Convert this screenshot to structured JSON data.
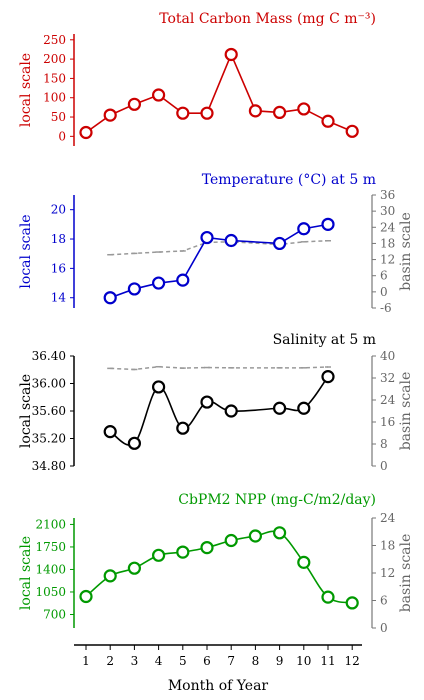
{
  "x_axis": {
    "label": "Month of Year",
    "ticks": [
      "1",
      "2",
      "3",
      "4",
      "5",
      "6",
      "7",
      "8",
      "9",
      "10",
      "11",
      "12"
    ]
  },
  "chart_data": [
    {
      "type": "line",
      "title": "Total Carbon Mass (mg C m⁻³)",
      "color": "#cc0000",
      "ylabel": "local scale",
      "ylim": [
        -25,
        265
      ],
      "yticks": [
        0,
        50,
        100,
        150,
        200,
        250
      ],
      "ytick_labels": [
        "0",
        "50",
        "100",
        "150",
        "200",
        "250"
      ],
      "series": [
        {
          "x": [
            1,
            2,
            3,
            4,
            5,
            6,
            7,
            8,
            9,
            10,
            11,
            12
          ],
          "values": [
            10,
            55,
            83,
            107,
            60,
            60,
            212,
            66,
            62,
            71,
            39,
            13
          ]
        }
      ]
    },
    {
      "type": "line",
      "title": "Temperature (°C) at 5 m",
      "color": "#0000cc",
      "ylabel": "local scale",
      "ylabel_right": "basin scale",
      "ylim": [
        13.3,
        21.0
      ],
      "yticks": [
        14,
        16,
        18,
        20
      ],
      "ytick_labels": [
        "14",
        "16",
        "18",
        "20"
      ],
      "ylim_right": [
        -6,
        36
      ],
      "yticks_right": [
        -6,
        0,
        6,
        12,
        18,
        24,
        30,
        36
      ],
      "ytick_labels_right": [
        "-6",
        "0",
        "6",
        "12",
        "18",
        "24",
        "30",
        "36"
      ],
      "series": [
        {
          "x": [
            2,
            3,
            4,
            5,
            6,
            7,
            9,
            10,
            11
          ],
          "values": [
            14.0,
            14.6,
            15.0,
            15.2,
            18.1,
            17.9,
            17.7,
            18.7,
            19.0
          ]
        },
        {
          "style": "dashed",
          "axis": "right",
          "color": "#999999",
          "x": [
            2,
            3,
            4,
            5,
            6,
            7,
            9,
            10,
            11
          ],
          "values": [
            13.8,
            14.3,
            14.8,
            15.2,
            18.4,
            18.6,
            17.6,
            18.6,
            19.0
          ]
        }
      ]
    },
    {
      "type": "line",
      "title": "Salinity at 5 m",
      "color": "#000000",
      "ylabel": "local scale",
      "ylabel_right": "basin scale",
      "ylim": [
        34.8,
        36.4
      ],
      "yticks": [
        34.8,
        35.2,
        35.6,
        36.0,
        36.4
      ],
      "ytick_labels": [
        "34.80",
        "35.20",
        "35.60",
        "36.00",
        "36.40"
      ],
      "ylim_right": [
        0,
        40
      ],
      "yticks_right": [
        0,
        8,
        16,
        24,
        32,
        40
      ],
      "ytick_labels_right": [
        "0",
        "8",
        "16",
        "24",
        "32",
        "40"
      ],
      "series": [
        {
          "smooth": true,
          "x": [
            2,
            3,
            4,
            5,
            6,
            7,
            9,
            10,
            11
          ],
          "values": [
            35.3,
            35.13,
            35.95,
            35.35,
            35.73,
            35.6,
            35.64,
            35.64,
            36.1
          ]
        },
        {
          "style": "dashed",
          "axis": "right",
          "color": "#999999",
          "x": [
            2,
            3,
            4,
            5,
            6,
            7,
            9,
            10,
            11
          ],
          "values": [
            35.5,
            35.1,
            36.1,
            35.6,
            35.8,
            35.7,
            35.7,
            35.7,
            36.0
          ]
        }
      ]
    },
    {
      "type": "line",
      "title": "CbPM2 NPP (mg-C/m2/day)",
      "color": "#009900",
      "ylabel": "local scale",
      "ylabel_right": "basin scale",
      "ylim": [
        490,
        2200
      ],
      "yticks": [
        700,
        1050,
        1400,
        1750,
        2100
      ],
      "ytick_labels": [
        "700",
        "1050",
        "1400",
        "1750",
        "2100"
      ],
      "ylim_right": [
        0,
        24
      ],
      "yticks_right": [
        0,
        6,
        12,
        18,
        24
      ],
      "ytick_labels_right": [
        "0",
        "6",
        "12",
        "18",
        "24"
      ],
      "series": [
        {
          "smooth": true,
          "x": [
            1,
            2,
            3,
            4,
            5,
            6,
            7,
            8,
            9,
            10,
            11,
            12
          ],
          "values": [
            980,
            1300,
            1420,
            1620,
            1670,
            1740,
            1850,
            1920,
            1970,
            1510,
            970,
            880
          ]
        }
      ]
    }
  ]
}
